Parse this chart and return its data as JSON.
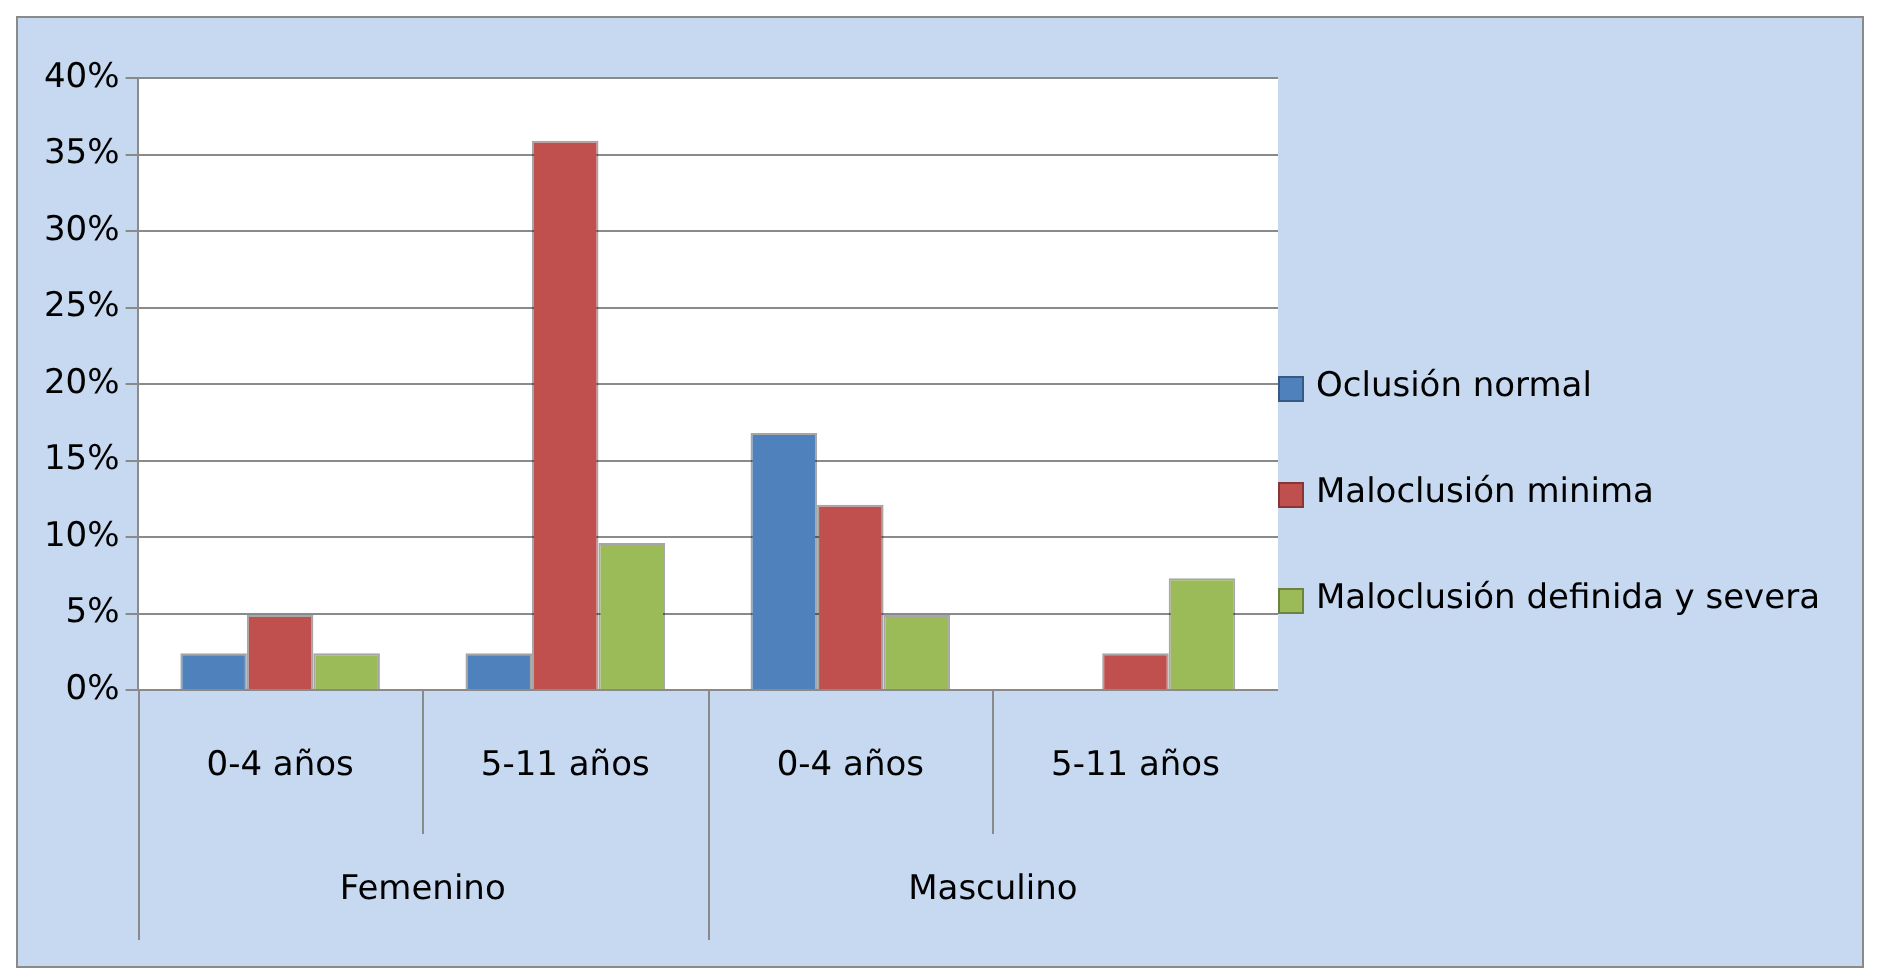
{
  "chart_data": {
    "type": "bar",
    "categories": [
      "0-4 años",
      "5-11 años",
      "0-4 años",
      "5-11 años"
    ],
    "series": [
      {
        "name": "Oclusión normal",
        "color": "#4f81bd",
        "values": [
          2.4,
          2.4,
          16.8,
          0
        ]
      },
      {
        "name": "Maloclusión minima",
        "color": "#c0504d",
        "values": [
          4.9,
          35.9,
          12.1,
          2.4
        ]
      },
      {
        "name": "Maloclusión definida y severa",
        "color": "#9bbb59",
        "values": [
          2.4,
          9.6,
          4.9,
          7.3
        ]
      }
    ],
    "ylim": [
      0,
      40
    ],
    "yticks": [
      {
        "value": 0,
        "label": "0%"
      },
      {
        "value": 5,
        "label": "5%"
      },
      {
        "value": 10,
        "label": "10%"
      },
      {
        "value": 15,
        "label": "15%"
      },
      {
        "value": 20,
        "label": "20%"
      },
      {
        "value": 25,
        "label": "25%"
      },
      {
        "value": 30,
        "label": "30%"
      },
      {
        "value": 35,
        "label": "35%"
      },
      {
        "value": 40,
        "label": "40%"
      }
    ],
    "grid": "y",
    "legend": "right",
    "annotations": [
      "Femenino",
      "Masculino"
    ]
  }
}
